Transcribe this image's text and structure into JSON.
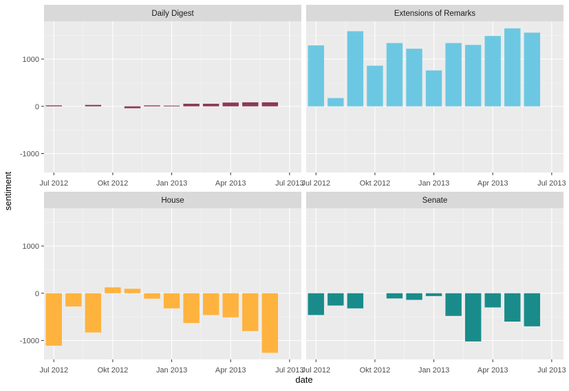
{
  "chart_data": {
    "type": "bar",
    "xlabel": "date",
    "ylabel": "sentiment",
    "ylim": [
      -1400,
      1800
    ],
    "yticks": [
      -1000,
      0,
      1000
    ],
    "x_tick_labels": [
      "Jul 2012",
      "Okt 2012",
      "Jan 2013",
      "Apr 2013",
      "Jul 2013"
    ],
    "x_tick_months": [
      0,
      3,
      6,
      9,
      12
    ],
    "xlim_months": [
      -0.5,
      12.6
    ],
    "grid": true,
    "legend": "none",
    "categories": [
      "2012-07",
      "2012-08",
      "2012-09",
      "2012-10",
      "2012-11",
      "2012-12",
      "2013-01",
      "2013-02",
      "2013-03",
      "2013-04",
      "2013-05",
      "2013-06"
    ],
    "panels": [
      {
        "name": "Daily Digest",
        "color": "#8B3A56",
        "values": [
          20,
          null,
          30,
          null,
          -40,
          20,
          15,
          55,
          55,
          80,
          85,
          85
        ]
      },
      {
        "name": "Extensions of Remarks",
        "color": "#6CC8E2",
        "values": [
          1290,
          175,
          1590,
          860,
          1340,
          1220,
          760,
          1340,
          1300,
          1490,
          1650,
          1560
        ]
      },
      {
        "name": "House",
        "color": "#FEB33E",
        "values": [
          -1110,
          -280,
          -830,
          125,
          95,
          -115,
          -320,
          -630,
          -460,
          -510,
          -800,
          -1260
        ]
      },
      {
        "name": "Senate",
        "color": "#1A8B8B",
        "values": [
          -460,
          -260,
          -320,
          null,
          -110,
          -140,
          -60,
          -480,
          -1020,
          -300,
          -600,
          -700
        ]
      }
    ]
  }
}
